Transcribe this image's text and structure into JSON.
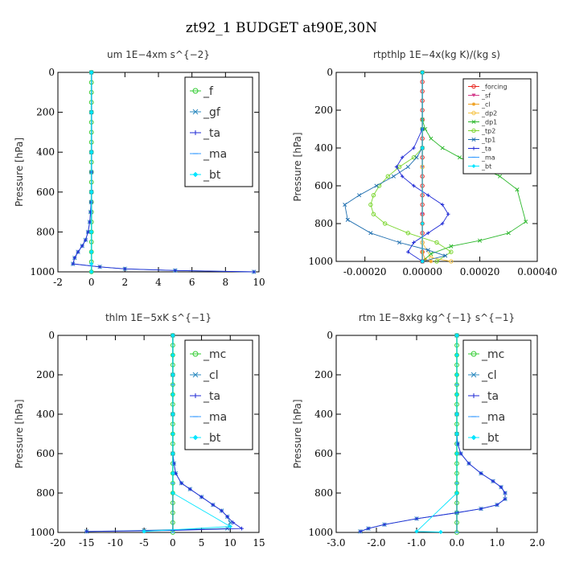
{
  "figure": {
    "title": "zt92_1  BUDGET at90E,30N"
  },
  "chart_data": [
    {
      "type": "line",
      "title": "um   1E−4xm s^{−2}",
      "ylabel": "Pressure [hPa]",
      "xlim": [
        -2,
        10
      ],
      "ylim": [
        1000,
        0
      ],
      "xticks": [
        "-2",
        "0",
        "2",
        "4",
        "6",
        "8",
        "10"
      ],
      "xtick_values": [
        -2,
        0,
        2,
        4,
        6,
        8,
        10
      ],
      "yticks": [
        0,
        200,
        400,
        600,
        800,
        1000
      ],
      "legend_position": "top-right",
      "legend_style": "big",
      "series": [
        {
          "name": "_f",
          "color": "#33cc33",
          "marker": "circle",
          "x": [
            0,
            0,
            0,
            0,
            0,
            0,
            0,
            0,
            0,
            0,
            0,
            0,
            0,
            0,
            0,
            0,
            0,
            0,
            0,
            0,
            0
          ],
          "y": [
            0,
            50,
            100,
            150,
            200,
            250,
            300,
            350,
            400,
            450,
            500,
            550,
            600,
            650,
            700,
            750,
            800,
            850,
            900,
            950,
            1000
          ]
        },
        {
          "name": "_gf",
          "color": "#2e8bc0",
          "marker": "x",
          "x": [
            0,
            0,
            0,
            0,
            0,
            -0.02,
            -0.05,
            -0.1,
            -0.2,
            -0.35,
            -0.55,
            -0.8,
            -1.0,
            -1.1,
            0.5,
            2.0,
            5.0,
            9.7
          ],
          "y": [
            0,
            200,
            400,
            500,
            600,
            650,
            700,
            750,
            800,
            840,
            870,
            900,
            930,
            960,
            975,
            985,
            993,
            1000
          ]
        },
        {
          "name": "_ta",
          "color": "#1f2ad6",
          "marker": "plus",
          "x": [
            0,
            0,
            0,
            0,
            0,
            -0.02,
            -0.05,
            -0.1,
            -0.2,
            -0.35,
            -0.55,
            -0.8,
            -1.0,
            -1.1,
            0.5,
            2.0,
            5.0,
            9.7
          ],
          "y": [
            0,
            200,
            400,
            500,
            600,
            650,
            700,
            750,
            800,
            840,
            870,
            900,
            930,
            960,
            975,
            985,
            993,
            1000
          ]
        },
        {
          "name": "_ma",
          "color": "#3399ff",
          "marker": "dash",
          "x": [
            0,
            0,
            0,
            0,
            0,
            0,
            0,
            0
          ],
          "y": [
            0,
            200,
            400,
            600,
            800,
            900,
            960,
            1000
          ]
        },
        {
          "name": "_bt",
          "color": "#00e5ff",
          "marker": "diamond",
          "x": [
            0,
            0,
            0,
            0,
            0,
            0,
            0,
            0
          ],
          "y": [
            0,
            200,
            400,
            600,
            800,
            900,
            960,
            1000
          ]
        }
      ]
    },
    {
      "type": "line",
      "title": "rtpthlp   1E−4x(kg K)/(kg s)",
      "ylabel": "Pressure [hPa]",
      "xlim": [
        -0.0003,
        0.0004
      ],
      "ylim": [
        1000,
        0
      ],
      "xticks": [
        "-0.00020",
        "0.00000",
        "0.00020",
        "0.00040"
      ],
      "xtick_values": [
        -0.0002,
        0,
        0.0002,
        0.0004
      ],
      "yticks": [
        0,
        200,
        400,
        600,
        800,
        1000
      ],
      "legend_position": "top-right",
      "legend_style": "small",
      "series": [
        {
          "name": "_forcing",
          "color": "#e8261e",
          "marker": "circle",
          "x": [
            0,
            0,
            0,
            0,
            0,
            0,
            0,
            0,
            0,
            0,
            0,
            0,
            0,
            0,
            0,
            0,
            0,
            0,
            0,
            0,
            0
          ],
          "y": [
            0,
            50,
            100,
            150,
            200,
            250,
            300,
            350,
            400,
            450,
            500,
            550,
            600,
            650,
            700,
            750,
            800,
            850,
            900,
            950,
            1000
          ]
        },
        {
          "name": "_sf",
          "color": "#d43a8a",
          "marker": "triangle",
          "x": [
            0,
            0,
            0,
            0,
            0
          ],
          "y": [
            0,
            250,
            500,
            750,
            1000
          ]
        },
        {
          "name": "_cl",
          "color": "#f0a020",
          "marker": "star",
          "x": [
            0,
            0,
            0,
            0,
            1e-05,
            3e-05
          ],
          "y": [
            0,
            400,
            800,
            950,
            990,
            1000
          ]
        },
        {
          "name": "_dp2",
          "color": "#f5c242",
          "marker": "circle",
          "x": [
            0,
            0,
            0,
            3e-05,
            0.0001
          ],
          "y": [
            0,
            500,
            900,
            980,
            1000
          ]
        },
        {
          "name": "_dp1",
          "color": "#2db82d",
          "marker": "x",
          "x": [
            0,
            0,
            1e-05,
            3e-05,
            7e-05,
            0.00013,
            0.0002,
            0.00027,
            0.00033,
            0.00036,
            0.0003,
            0.0002,
            0.0001,
            3e-05,
            0
          ],
          "y": [
            0,
            250,
            300,
            350,
            400,
            450,
            500,
            550,
            620,
            790,
            850,
            890,
            920,
            960,
            1000
          ]
        },
        {
          "name": "_tp2",
          "color": "#7ad62e",
          "marker": "circle",
          "x": [
            0,
            0,
            0,
            -3e-05,
            -8e-05,
            -0.00012,
            -0.00015,
            -0.00017,
            -0.00018,
            -0.00017,
            -0.00013,
            -5e-05,
            5e-05,
            0.0001,
            5e-05
          ],
          "y": [
            0,
            300,
            400,
            450,
            500,
            550,
            600,
            650,
            700,
            750,
            800,
            850,
            900,
            950,
            1000
          ]
        },
        {
          "name": "_tp1",
          "color": "#1f6fb0",
          "marker": "x",
          "x": [
            0,
            0,
            0,
            -2e-05,
            -5e-05,
            -0.0001,
            -0.00016,
            -0.00022,
            -0.00027,
            -0.00026,
            -0.00018,
            -8e-05,
            2e-05,
            8e-05,
            0
          ],
          "y": [
            0,
            300,
            400,
            450,
            500,
            550,
            600,
            650,
            700,
            780,
            850,
            900,
            940,
            970,
            1000
          ]
        },
        {
          "name": "_ta",
          "color": "#1f2ad6",
          "marker": "plus",
          "x": [
            0,
            0,
            -3e-05,
            -7e-05,
            -9e-05,
            -7e-05,
            -3e-05,
            2e-05,
            7e-05,
            9e-05,
            7e-05,
            2e-05,
            -3e-05,
            -5e-05,
            0
          ],
          "y": [
            0,
            300,
            400,
            450,
            500,
            550,
            600,
            650,
            700,
            750,
            800,
            850,
            900,
            950,
            1000
          ]
        },
        {
          "name": "_ma",
          "color": "#3399ff",
          "marker": "dash",
          "x": [
            0,
            0,
            0,
            0
          ],
          "y": [
            0,
            400,
            800,
            1000
          ]
        },
        {
          "name": "_bt",
          "color": "#00e5ff",
          "marker": "diamond",
          "x": [
            0,
            0,
            0,
            0
          ],
          "y": [
            0,
            400,
            800,
            1000
          ]
        }
      ]
    },
    {
      "type": "line",
      "title": "thlm   1E−5xK s^{−1}",
      "ylabel": "Pressure [hPa]",
      "xlim": [
        -20,
        15
      ],
      "ylim": [
        1000,
        0
      ],
      "xticks": [
        "-20",
        "-15",
        "-10",
        "-5",
        "0",
        "5",
        "10",
        "15"
      ],
      "xtick_values": [
        -20,
        -15,
        -10,
        -5,
        0,
        5,
        10,
        15
      ],
      "yticks": [
        0,
        200,
        400,
        600,
        800,
        1000
      ],
      "legend_position": "top-right",
      "legend_style": "big",
      "series": [
        {
          "name": "_mc",
          "color": "#33cc33",
          "marker": "circle",
          "x": [
            0,
            0,
            0,
            0,
            0,
            0,
            0,
            0,
            0,
            0,
            0,
            0,
            0,
            0,
            0,
            0,
            0,
            0,
            0,
            0,
            0
          ],
          "y": [
            0,
            50,
            100,
            150,
            200,
            250,
            300,
            350,
            400,
            450,
            500,
            550,
            600,
            650,
            700,
            750,
            800,
            850,
            900,
            950,
            1000
          ]
        },
        {
          "name": "_cl",
          "color": "#2e8bc0",
          "marker": "x",
          "x": [
            0,
            0,
            0,
            0,
            0.2,
            0.5,
            1.5,
            3,
            5,
            7,
            8.5,
            9.5,
            10,
            9.5,
            -5,
            -15
          ],
          "y": [
            0,
            200,
            400,
            600,
            650,
            700,
            750,
            780,
            820,
            860,
            890,
            920,
            950,
            980,
            990,
            995
          ]
        },
        {
          "name": "_ta",
          "color": "#1f2ad6",
          "marker": "plus",
          "x": [
            0,
            0,
            0,
            0,
            0.2,
            0.5,
            1.5,
            3,
            5,
            7,
            8.5,
            9.5,
            10.5,
            12,
            0,
            -15
          ],
          "y": [
            0,
            200,
            400,
            600,
            650,
            700,
            750,
            780,
            820,
            860,
            890,
            920,
            950,
            980,
            990,
            995
          ]
        },
        {
          "name": "_ma",
          "color": "#3399ff",
          "marker": "dash",
          "x": [
            0,
            0,
            0,
            0,
            0
          ],
          "y": [
            0,
            250,
            500,
            750,
            1000
          ]
        },
        {
          "name": "_bt",
          "color": "#00e5ff",
          "marker": "diamond",
          "x": [
            0,
            0,
            0,
            0,
            0,
            0,
            0,
            0,
            0,
            10,
            -5
          ],
          "y": [
            0,
            100,
            200,
            300,
            400,
            500,
            600,
            700,
            800,
            970,
            995
          ]
        }
      ]
    },
    {
      "type": "line",
      "title": "rtm   1E−8xkg kg^{−1} s^{−1}",
      "ylabel": "Pressure [hPa]",
      "xlim": [
        -3.0,
        2.0
      ],
      "ylim": [
        1000,
        0
      ],
      "xticks": [
        "-3.0",
        "-2.0",
        "-1.0",
        "0.0",
        "1.0",
        "2.0"
      ],
      "xtick_values": [
        -3.0,
        -2.0,
        -1.0,
        0.0,
        1.0,
        2.0
      ],
      "yticks": [
        0,
        200,
        400,
        600,
        800,
        1000
      ],
      "legend_position": "top-right",
      "legend_style": "big",
      "series": [
        {
          "name": "_mc",
          "color": "#33cc33",
          "marker": "circle",
          "x": [
            0,
            0,
            0,
            0,
            0,
            0,
            0,
            0,
            0,
            0,
            0,
            0,
            0,
            0,
            0,
            0,
            0,
            0,
            0,
            0,
            0
          ],
          "y": [
            0,
            50,
            100,
            150,
            200,
            250,
            300,
            350,
            400,
            450,
            500,
            550,
            600,
            650,
            700,
            750,
            800,
            850,
            900,
            950,
            1000
          ]
        },
        {
          "name": "_cl",
          "color": "#2e8bc0",
          "marker": "x",
          "x": [
            0,
            0,
            0,
            0.02,
            0.1,
            0.3,
            0.6,
            0.9,
            1.1,
            1.2,
            1.2,
            1.0,
            0.6,
            0,
            -1.0,
            -1.8,
            -2.2,
            -2.4
          ],
          "y": [
            0,
            400,
            500,
            550,
            600,
            650,
            700,
            740,
            770,
            800,
            830,
            860,
            880,
            900,
            930,
            960,
            980,
            995
          ]
        },
        {
          "name": "_ta",
          "color": "#1f2ad6",
          "marker": "plus",
          "x": [
            0,
            0,
            0,
            0.02,
            0.1,
            0.3,
            0.6,
            0.9,
            1.1,
            1.2,
            1.2,
            1.0,
            0.6,
            0,
            -1.0,
            -1.8,
            -2.2,
            -2.4
          ],
          "y": [
            0,
            400,
            500,
            550,
            600,
            650,
            700,
            740,
            770,
            800,
            830,
            860,
            880,
            900,
            930,
            960,
            980,
            995
          ]
        },
        {
          "name": "_ma",
          "color": "#3399ff",
          "marker": "dash",
          "x": [
            0,
            0,
            0,
            0,
            0
          ],
          "y": [
            0,
            250,
            500,
            750,
            1000
          ]
        },
        {
          "name": "_bt",
          "color": "#00e5ff",
          "marker": "diamond",
          "x": [
            0,
            0,
            0,
            0,
            0,
            0,
            0,
            0,
            -1.0,
            -0.4
          ],
          "y": [
            0,
            100,
            200,
            300,
            400,
            500,
            600,
            800,
            995,
            998
          ]
        }
      ]
    }
  ]
}
